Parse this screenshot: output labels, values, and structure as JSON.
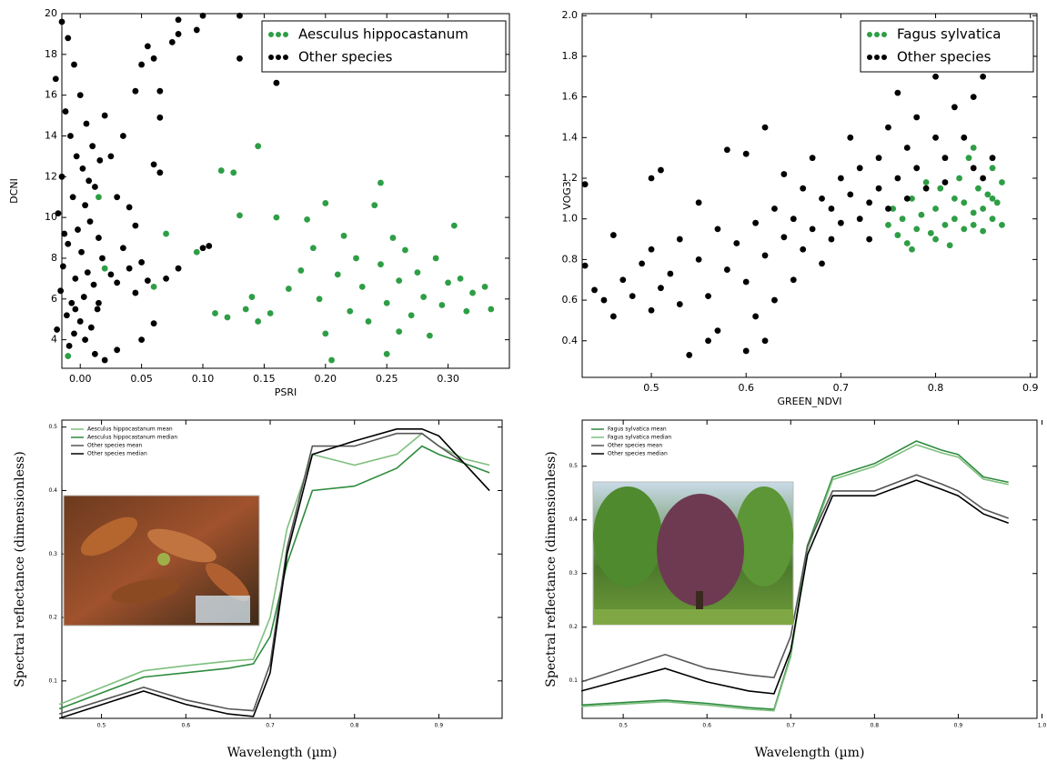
{
  "chart_data": [
    {
      "type": "scatter",
      "xlabel": "PSRI",
      "ylabel": "DCNI",
      "legend": "upper right",
      "xlim": [
        -0.015,
        0.35
      ],
      "ylim": [
        2.6,
        20
      ],
      "xticks": [
        {
          "value": 0,
          "label": "0.00"
        },
        0.05,
        {
          "value": 0.1,
          "label": "0.10"
        },
        0.15,
        {
          "value": 0.2,
          "label": "0.20"
        },
        0.25,
        {
          "value": 0.3,
          "label": "0.30"
        }
      ],
      "yticks": [
        4,
        6,
        8,
        10,
        12,
        14,
        16,
        18,
        20
      ],
      "series": [
        {
          "name": "Aesculus hippocastanum",
          "color": "#2e9e45",
          "x": [
            0.115,
            0.125,
            0.145,
            0.13,
            0.16,
            0.11,
            0.12,
            0.135,
            0.14,
            0.155,
            0.17,
            0.18,
            0.185,
            0.19,
            0.2,
            0.195,
            0.2,
            0.205,
            0.21,
            0.215,
            0.22,
            0.225,
            0.23,
            0.235,
            0.24,
            0.245,
            0.245,
            0.25,
            0.25,
            0.255,
            0.26,
            0.26,
            0.265,
            0.27,
            0.275,
            0.28,
            0.285,
            0.29,
            0.295,
            0.3,
            0.305,
            0.31,
            0.315,
            0.32,
            0.33,
            0.335,
            0.07,
            0.095,
            0.06,
            0.145,
            -0.01,
            0.02,
            0.015
          ],
          "y": [
            12.3,
            12.2,
            13.5,
            10.1,
            10.0,
            5.3,
            5.1,
            5.5,
            6.1,
            5.3,
            6.5,
            7.4,
            9.9,
            8.5,
            10.7,
            6.0,
            4.3,
            3.0,
            7.2,
            9.1,
            5.4,
            8.0,
            6.6,
            4.9,
            10.6,
            11.7,
            7.7,
            5.8,
            3.3,
            9.0,
            6.9,
            4.4,
            8.4,
            5.2,
            7.3,
            6.1,
            4.2,
            8.0,
            5.7,
            6.8,
            9.6,
            7.0,
            5.4,
            6.3,
            6.6,
            5.5,
            9.2,
            8.3,
            6.6,
            4.9,
            3.2,
            7.5,
            11.0
          ]
        },
        {
          "name": "Other species",
          "color": "#000000",
          "x": [
            -0.015,
            -0.01,
            -0.005,
            -0.02,
            0.0,
            -0.012,
            0.005,
            -0.008,
            0.01,
            -0.003,
            0.002,
            -0.015,
            0.012,
            -0.006,
            0.004,
            -0.018,
            0.008,
            -0.002,
            0.015,
            -0.01,
            0.001,
            0.018,
            -0.014,
            0.006,
            -0.004,
            0.011,
            -0.016,
            0.003,
            -0.007,
            0.014,
            -0.011,
            0.0,
            0.009,
            -0.005,
            0.004,
            -0.009,
            0.012,
            0.02,
            0.025,
            0.03,
            0.035,
            0.04,
            0.045,
            0.05,
            0.055,
            0.03,
            0.025,
            0.04,
            0.045,
            0.02,
            0.035,
            0.05,
            0.045,
            0.055,
            0.06,
            0.065,
            0.065,
            0.06,
            0.065,
            0.075,
            0.08,
            0.08,
            0.095,
            0.1,
            0.13,
            0.13,
            0.16,
            0.08,
            0.07,
            0.1,
            0.105,
            0.06,
            0.05,
            0.03,
            0.015,
            -0.013,
            0.007,
            -0.004,
            0.016,
            -0.019
          ],
          "y": [
            19.6,
            18.8,
            17.5,
            16.8,
            16.0,
            15.2,
            14.6,
            14.0,
            13.5,
            13.0,
            12.4,
            12.0,
            11.5,
            11.0,
            10.6,
            10.2,
            9.8,
            9.4,
            9.0,
            8.7,
            8.3,
            8.0,
            7.6,
            7.3,
            7.0,
            6.7,
            6.4,
            6.1,
            5.8,
            5.5,
            5.2,
            4.9,
            4.6,
            4.3,
            4.0,
            3.7,
            3.3,
            3.0,
            7.2,
            6.8,
            8.5,
            7.5,
            6.3,
            7.8,
            6.9,
            11.0,
            13.0,
            10.5,
            9.6,
            15.0,
            14.0,
            17.5,
            16.2,
            18.4,
            17.8,
            16.2,
            14.9,
            12.6,
            12.2,
            18.6,
            19.7,
            19.0,
            19.2,
            19.9,
            19.9,
            17.8,
            16.6,
            7.5,
            7.0,
            8.5,
            8.6,
            4.8,
            4.0,
            3.5,
            5.8,
            9.2,
            11.8,
            5.5,
            12.8,
            4.5
          ]
        }
      ]
    },
    {
      "type": "scatter",
      "xlabel": "GREEN_NDVI",
      "ylabel": "VOG3",
      "legend": "upper right",
      "xlim": [
        0.427,
        0.907
      ],
      "ylim": [
        0.22,
        2.01
      ],
      "xticks": [
        0.5,
        0.6,
        0.7,
        0.8,
        0.9
      ],
      "yticks": [
        0.4,
        0.6,
        0.8,
        {
          "value": 1,
          "label": "1.0"
        },
        1.2,
        1.4,
        1.6,
        1.8,
        {
          "value": 2,
          "label": "2.0"
        }
      ],
      "series": [
        {
          "name": "Fagus sylvatica",
          "color": "#2e9e45",
          "x": [
            0.75,
            0.755,
            0.76,
            0.765,
            0.77,
            0.775,
            0.78,
            0.785,
            0.79,
            0.795,
            0.8,
            0.805,
            0.81,
            0.815,
            0.82,
            0.82,
            0.825,
            0.83,
            0.83,
            0.835,
            0.84,
            0.84,
            0.845,
            0.85,
            0.85,
            0.855,
            0.86,
            0.86,
            0.865,
            0.87,
            0.87,
            0.84,
            0.775,
            0.8,
            0.86
          ],
          "y": [
            0.97,
            1.05,
            0.92,
            1.0,
            0.88,
            1.1,
            0.95,
            1.02,
            1.18,
            0.93,
            1.05,
            1.15,
            0.97,
            0.87,
            1.1,
            1.0,
            1.2,
            0.95,
            1.08,
            1.3,
            1.03,
            0.97,
            1.15,
            1.05,
            0.94,
            1.12,
            1.25,
            1.0,
            1.08,
            1.18,
            0.97,
            1.35,
            0.85,
            0.9,
            1.1
          ]
        },
        {
          "name": "Other species",
          "color": "#000000",
          "x": [
            0.43,
            0.43,
            0.44,
            0.45,
            0.46,
            0.46,
            0.47,
            0.48,
            0.49,
            0.5,
            0.5,
            0.51,
            0.51,
            0.52,
            0.53,
            0.53,
            0.54,
            0.55,
            0.55,
            0.56,
            0.57,
            0.57,
            0.58,
            0.58,
            0.59,
            0.6,
            0.6,
            0.61,
            0.61,
            0.62,
            0.62,
            0.63,
            0.63,
            0.64,
            0.64,
            0.65,
            0.65,
            0.66,
            0.66,
            0.67,
            0.67,
            0.68,
            0.68,
            0.69,
            0.69,
            0.7,
            0.7,
            0.71,
            0.71,
            0.72,
            0.72,
            0.73,
            0.73,
            0.74,
            0.74,
            0.75,
            0.75,
            0.76,
            0.76,
            0.77,
            0.77,
            0.78,
            0.78,
            0.79,
            0.8,
            0.8,
            0.81,
            0.81,
            0.82,
            0.82,
            0.83,
            0.84,
            0.84,
            0.85,
            0.85,
            0.86,
            0.6,
            0.62,
            0.56,
            0.5
          ],
          "y": [
            0.77,
            1.17,
            0.65,
            0.6,
            0.92,
            0.52,
            0.7,
            0.62,
            0.78,
            1.2,
            0.85,
            1.24,
            0.66,
            0.73,
            0.58,
            0.9,
            0.33,
            0.8,
            1.08,
            0.62,
            0.95,
            0.45,
            0.75,
            1.34,
            0.88,
            0.69,
            1.32,
            0.98,
            0.52,
            1.45,
            0.82,
            0.6,
            1.05,
            0.91,
            1.22,
            0.7,
            1.0,
            1.15,
            0.85,
            0.95,
            1.3,
            0.78,
            1.1,
            1.05,
            0.9,
            1.2,
            0.98,
            1.12,
            1.4,
            1.0,
            1.25,
            1.08,
            0.9,
            1.3,
            1.15,
            1.45,
            1.05,
            1.2,
            1.62,
            1.1,
            1.35,
            1.25,
            1.5,
            1.15,
            1.4,
            1.7,
            1.3,
            1.18,
            1.55,
            1.75,
            1.4,
            1.6,
            1.25,
            1.7,
            1.2,
            1.3,
            0.35,
            0.4,
            0.4,
            0.55
          ]
        }
      ]
    },
    {
      "type": "line",
      "xlabel": "Wavelength (µm)",
      "ylabel": "Spectral reflectance (dimensionless)",
      "legend": "upper left",
      "xlim": [
        0.453,
        0.975
      ],
      "ylim": [
        0.041,
        0.511
      ],
      "xticks": [
        0.5,
        0.6,
        0.7,
        0.8,
        0.9
      ],
      "yticks": [
        0.1,
        0.2,
        0.3,
        0.4,
        0.5
      ],
      "x": [
        0.45,
        0.55,
        0.6,
        0.65,
        0.68,
        0.7,
        0.72,
        0.75,
        0.8,
        0.85,
        0.88,
        0.9,
        0.93,
        0.96
      ],
      "series": [
        {
          "name": "Aesculus hippocastanum mean",
          "color": "#7fbf7f",
          "values": [
            0.063,
            0.116,
            0.124,
            0.131,
            0.134,
            0.2,
            0.34,
            0.457,
            0.44,
            0.457,
            0.49,
            0.47,
            0.45,
            0.44
          ]
        },
        {
          "name": "Aesculus hippocastanum median",
          "color": "#2e8b3e",
          "values": [
            0.056,
            0.106,
            0.113,
            0.12,
            0.127,
            0.17,
            0.285,
            0.4,
            0.407,
            0.435,
            0.47,
            0.457,
            0.443,
            0.428
          ]
        },
        {
          "name": "Other species mean",
          "color": "#555555",
          "values": [
            0.048,
            0.09,
            0.07,
            0.056,
            0.053,
            0.127,
            0.31,
            0.47,
            0.47,
            0.49,
            0.49,
            0.47,
            0.443,
            0.4
          ]
        },
        {
          "name": "Other species median",
          "color": "#000000",
          "values": [
            0.041,
            0.084,
            0.063,
            0.048,
            0.044,
            0.113,
            0.3,
            0.457,
            0.478,
            0.497,
            0.497,
            0.486,
            0.443,
            0.4
          ]
        }
      ]
    },
    {
      "type": "line",
      "xlabel": "Wavelength (µm)",
      "ylabel": "Spectral reflectance (dimensionless)",
      "legend": "upper left",
      "xlim": [
        0.451,
        0.994
      ],
      "ylim": [
        0.03,
        0.586
      ],
      "xticks": [
        0.5,
        0.6,
        0.7,
        0.8,
        0.9,
        {
          "value": 1,
          "label": "1.0"
        }
      ],
      "yticks": [
        0.1,
        0.2,
        0.3,
        0.4,
        0.5
      ],
      "x": [
        0.45,
        0.55,
        0.6,
        0.65,
        0.68,
        0.7,
        0.72,
        0.75,
        0.8,
        0.85,
        0.88,
        0.9,
        0.93,
        0.96
      ],
      "series": [
        {
          "name": "Fagus sylvatica mean",
          "color": "#2e8b3e",
          "values": [
            0.055,
            0.064,
            0.058,
            0.05,
            0.047,
            0.149,
            0.352,
            0.48,
            0.505,
            0.547,
            0.53,
            0.522,
            0.48,
            0.47
          ]
        },
        {
          "name": "Fagus sylvatica median",
          "color": "#7fbf7f",
          "values": [
            0.052,
            0.061,
            0.055,
            0.047,
            0.044,
            0.145,
            0.345,
            0.475,
            0.5,
            0.54,
            0.525,
            0.517,
            0.476,
            0.466
          ]
        },
        {
          "name": "Other species mean",
          "color": "#555555",
          "values": [
            0.098,
            0.149,
            0.123,
            0.111,
            0.106,
            0.183,
            0.352,
            0.454,
            0.454,
            0.484,
            0.467,
            0.454,
            0.42,
            0.403
          ]
        },
        {
          "name": "Other species median",
          "color": "#000000",
          "values": [
            0.081,
            0.123,
            0.098,
            0.081,
            0.076,
            0.157,
            0.335,
            0.445,
            0.445,
            0.474,
            0.457,
            0.445,
            0.411,
            0.394
          ]
        }
      ]
    }
  ]
}
